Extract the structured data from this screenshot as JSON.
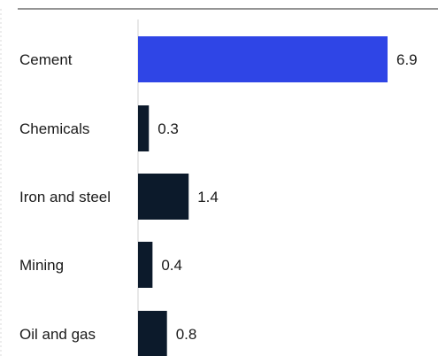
{
  "chart_data": {
    "type": "bar",
    "orientation": "horizontal",
    "categories": [
      "Cement",
      "Chemicals",
      "Iron and steel",
      "Mining",
      "Oil and gas"
    ],
    "values": [
      6.9,
      0.3,
      1.4,
      0.4,
      0.8
    ],
    "value_labels": [
      "6.9",
      "0.3",
      "1.4",
      "0.4",
      "0.8"
    ],
    "highlight_index": 0,
    "colors": {
      "highlight": "#2f45e6",
      "default": "#0c1a2b",
      "top_rule": "#555555",
      "baseline": "#d0d0d0",
      "left_guide": "#d9d9d9"
    },
    "xlim": [
      0,
      6.9
    ],
    "grid": false,
    "legend": "none"
  }
}
